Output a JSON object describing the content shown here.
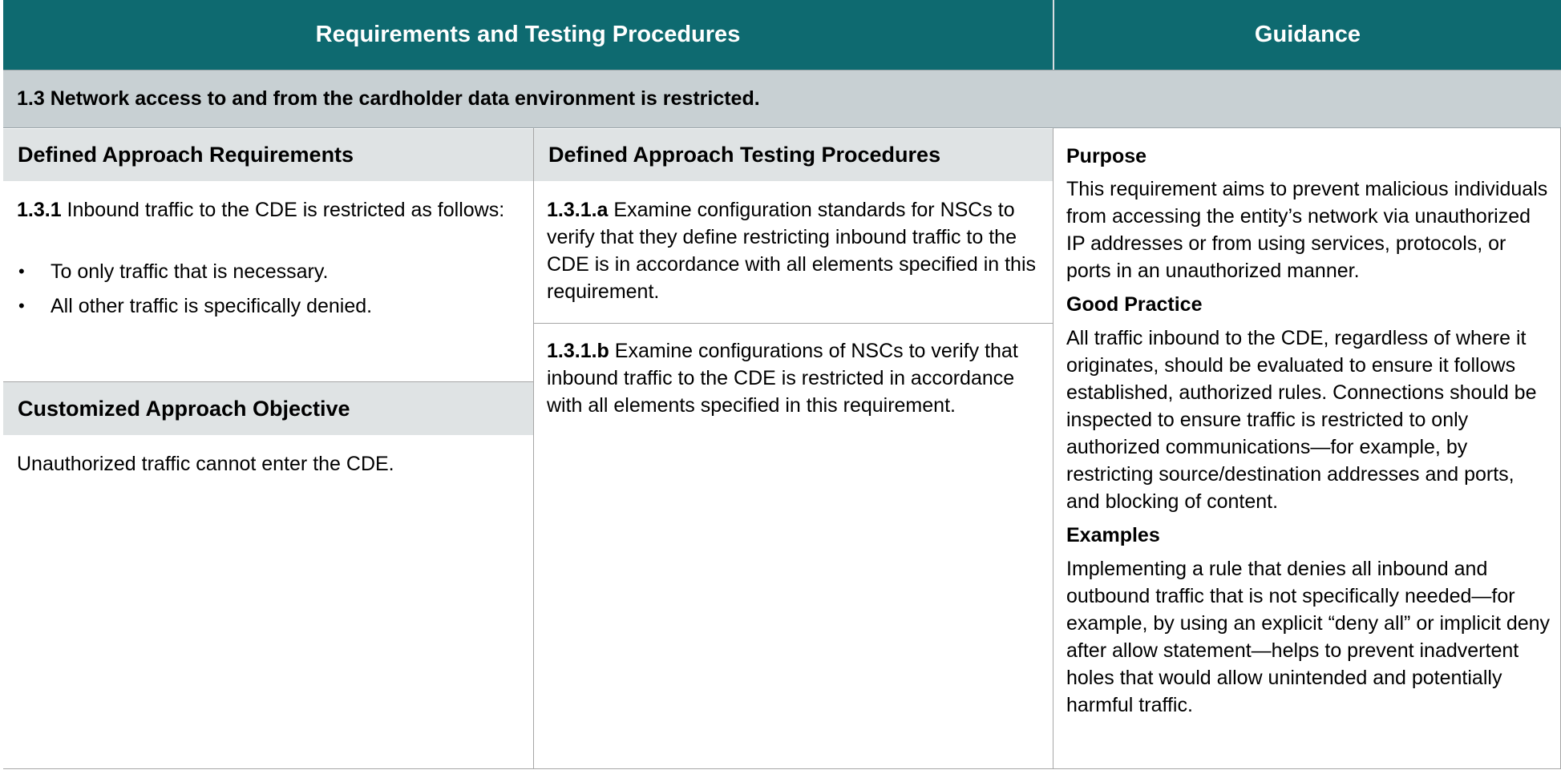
{
  "header": {
    "left_title": "Requirements and Testing Procedures",
    "right_title": "Guidance"
  },
  "section": {
    "title": "1.3 Network access to and from the cardholder data environment is restricted."
  },
  "defined_approach": {
    "requirements_header": "Defined Approach Requirements",
    "testing_header": "Defined Approach Testing Procedures",
    "requirement": {
      "id": "1.3.1",
      "text": " Inbound traffic to the CDE is restricted as follows:",
      "bullets": [
        "To only traffic that is necessary.",
        "All other traffic is specifically denied."
      ]
    },
    "tests": [
      {
        "id": "1.3.1.a",
        "text": " Examine configuration standards for NSCs to verify that they define restricting inbound traffic to the CDE is in accordance with all elements specified in this requirement."
      },
      {
        "id": "1.3.1.b",
        "text": " Examine configurations of NSCs to verify that inbound traffic to the CDE is restricted in accordance with all elements specified in this requirement."
      }
    ]
  },
  "customized_approach": {
    "header": "Customized Approach Objective",
    "text": "Unauthorized traffic cannot enter the CDE."
  },
  "guidance": {
    "purpose_heading": "Purpose",
    "purpose_text": "This requirement aims to prevent malicious individuals from accessing the entity’s network via unauthorized IP addresses or from using services, protocols, or ports in an unauthorized manner.",
    "good_practice_heading": "Good Practice",
    "good_practice_text": "All traffic inbound to the CDE, regardless of where it originates, should be evaluated to ensure it follows established, authorized rules. Connections should be inspected to ensure traffic is restricted to only authorized communications—for example, by restricting source/destination addresses and ports, and blocking of content.",
    "examples_heading": "Examples",
    "examples_text": "Implementing a rule that denies all inbound and outbound traffic that is not specifically needed—for example, by using an explicit “deny all” or implicit deny after allow statement—helps to prevent inadvertent holes that would allow unintended and potentially harmful traffic."
  }
}
